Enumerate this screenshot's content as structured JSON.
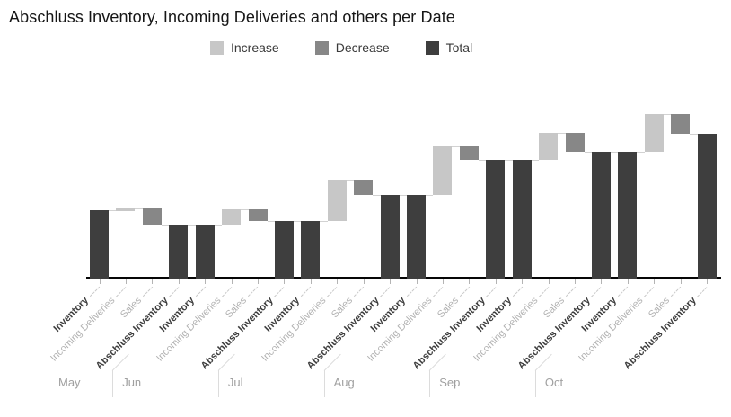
{
  "title": "Abschluss Inventory, Incoming Deliveries and others per Date",
  "legend": [
    {
      "label": "Increase",
      "type": "increase",
      "color": "#c7c7c7"
    },
    {
      "label": "Decrease",
      "type": "decrease",
      "color": "#878787"
    },
    {
      "label": "Total",
      "type": "total",
      "color": "#3e3e3e"
    }
  ],
  "colors": {
    "increase": "#c7c7c7",
    "decrease": "#878787",
    "total": "#3e3e3e",
    "axis": "#060606",
    "connector": "#d2d2d2",
    "tick": "#b4b4b4",
    "category_label": "#b2b2b2",
    "category_label_emphasis": "#3d3d3d",
    "month_label": "#a0a0a0",
    "separator": "#dcdcdc",
    "title": "#161616"
  },
  "chart_data": {
    "type": "waterfall",
    "title": "Abschluss Inventory, Incoming Deliveries and others per Date",
    "legend_entries": [
      "Increase",
      "Decrease",
      "Total"
    ],
    "legend_position": "top",
    "y_axis_visible": false,
    "baseline": 0,
    "ylim": [
      0,
      190
    ],
    "months": [
      "May",
      "Jun",
      "Jul",
      "Aug",
      "Sep",
      "Oct"
    ],
    "category_pattern": [
      "Inventory",
      "Incoming Deliveries",
      "Sales",
      "Abschluss Inventory"
    ],
    "series": [
      {
        "month": "May",
        "steps": [
          {
            "label": "Inventory",
            "type": "total",
            "value": 76
          },
          {
            "label": "Incoming Deliveries",
            "type": "increase",
            "value": 2
          },
          {
            "label": "Sales",
            "type": "decrease",
            "value": -18
          },
          {
            "label": "Abschluss Inventory",
            "type": "total",
            "value": 60
          }
        ]
      },
      {
        "month": "Jun",
        "steps": [
          {
            "label": "Inventory",
            "type": "total",
            "value": 60
          },
          {
            "label": "Incoming Deliveries",
            "type": "increase",
            "value": 17
          },
          {
            "label": "Sales",
            "type": "decrease",
            "value": -13
          },
          {
            "label": "Abschluss Inventory",
            "type": "total",
            "value": 64
          }
        ]
      },
      {
        "month": "Jul",
        "steps": [
          {
            "label": "Inventory",
            "type": "total",
            "value": 64
          },
          {
            "label": "Incoming Deliveries",
            "type": "increase",
            "value": 46
          },
          {
            "label": "Sales",
            "type": "decrease",
            "value": -17
          },
          {
            "label": "Abschluss Inventory",
            "type": "total",
            "value": 93
          }
        ]
      },
      {
        "month": "Aug",
        "steps": [
          {
            "label": "Inventory",
            "type": "total",
            "value": 93
          },
          {
            "label": "Incoming Deliveries",
            "type": "increase",
            "value": 54
          },
          {
            "label": "Sales",
            "type": "decrease",
            "value": -15
          },
          {
            "label": "Abschluss Inventory",
            "type": "total",
            "value": 132
          }
        ]
      },
      {
        "month": "Sep",
        "steps": [
          {
            "label": "Inventory",
            "type": "total",
            "value": 132
          },
          {
            "label": "Incoming Deliveries",
            "type": "increase",
            "value": 30
          },
          {
            "label": "Sales",
            "type": "decrease",
            "value": -21
          },
          {
            "label": "Abschluss Inventory",
            "type": "total",
            "value": 141
          }
        ]
      },
      {
        "month": "Oct",
        "steps": [
          {
            "label": "Inventory",
            "type": "total",
            "value": 141
          },
          {
            "label": "Incoming Deliveries",
            "type": "increase",
            "value": 42
          },
          {
            "label": "Sales",
            "type": "decrease",
            "value": -22
          },
          {
            "label": "Abschluss Inventory",
            "type": "total",
            "value": 161
          }
        ]
      }
    ]
  }
}
